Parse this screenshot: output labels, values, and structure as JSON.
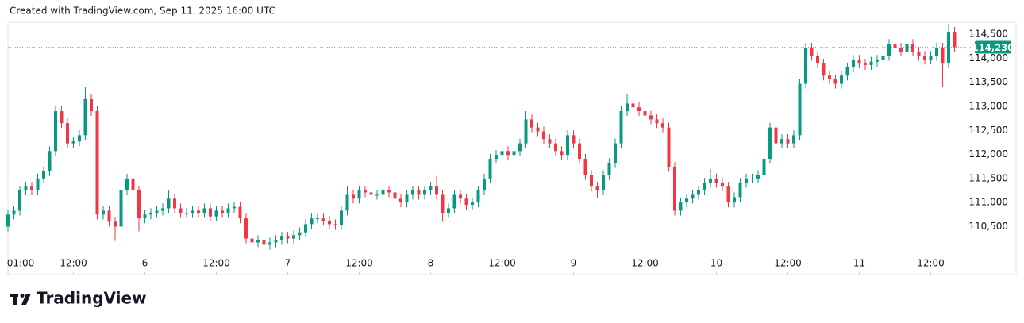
{
  "chart_data": {
    "type": "candlestick",
    "title": "Created with TradingView.com, Sep 11, 2025 16:00 UTC",
    "brand": "TradingView",
    "up_color": "#089981",
    "down_color": "#f23645",
    "last_price": {
      "value": 114230,
      "label": "114,230"
    },
    "xlim": [
      1,
      163
    ],
    "xticks": [
      {
        "value": 1,
        "label": "01:00"
      },
      {
        "value": 12,
        "label": "12:00"
      },
      {
        "value": 24,
        "label": "6"
      },
      {
        "value": 36,
        "label": "12:00"
      },
      {
        "value": 48,
        "label": "7"
      },
      {
        "value": 60,
        "label": "12:00"
      },
      {
        "value": 72,
        "label": "8"
      },
      {
        "value": 84,
        "label": "12:00"
      },
      {
        "value": 96,
        "label": "9"
      },
      {
        "value": 108,
        "label": "12:00"
      },
      {
        "value": 120,
        "label": "10"
      },
      {
        "value": 132,
        "label": "12:00"
      },
      {
        "value": 144,
        "label": "11"
      },
      {
        "value": 156,
        "label": "12:00"
      }
    ],
    "ylim": [
      109500,
      114750
    ],
    "yticks": [
      {
        "value": 110500,
        "label": "110,500"
      },
      {
        "value": 111000,
        "label": "111,000"
      },
      {
        "value": 111500,
        "label": "111,500"
      },
      {
        "value": 112000,
        "label": "112,000"
      },
      {
        "value": 112500,
        "label": "112,500"
      },
      {
        "value": 113000,
        "label": "113,000"
      },
      {
        "value": 113500,
        "label": "113,500"
      },
      {
        "value": 114000,
        "label": "114,000"
      },
      {
        "value": 114500,
        "label": "114,500"
      }
    ],
    "x": [
      1,
      2,
      3,
      4,
      5,
      6,
      7,
      8,
      9,
      10,
      11,
      12,
      13,
      14,
      15,
      16,
      17,
      18,
      19,
      20,
      21,
      22,
      23,
      24,
      25,
      26,
      27,
      28,
      29,
      30,
      31,
      32,
      33,
      34,
      35,
      36,
      37,
      38,
      39,
      40,
      41,
      42,
      43,
      44,
      45,
      46,
      47,
      48,
      49,
      50,
      51,
      52,
      53,
      54,
      55,
      56,
      57,
      58,
      59,
      60,
      61,
      62,
      63,
      64,
      65,
      66,
      67,
      68,
      69,
      70,
      71,
      72,
      73,
      74,
      75,
      76,
      77,
      78,
      79,
      80,
      81,
      82,
      83,
      84,
      85,
      86,
      87,
      88,
      89,
      90,
      91,
      92,
      93,
      94,
      95,
      96,
      97,
      98,
      99,
      100,
      101,
      102,
      103,
      104,
      105,
      106,
      107,
      108,
      109,
      110,
      111,
      112,
      113,
      114,
      115,
      116,
      117,
      118,
      119,
      120,
      121,
      122,
      123,
      124,
      125,
      126,
      127,
      128,
      129,
      130,
      131,
      132,
      133,
      134,
      135,
      136,
      137,
      138,
      139,
      140,
      141,
      142,
      143,
      144,
      145,
      146,
      147,
      148,
      149,
      150,
      151,
      152,
      153,
      154,
      155,
      156,
      157,
      158,
      159,
      160
    ],
    "open": [
      110500,
      110750,
      110830,
      111250,
      111330,
      111250,
      111500,
      111650,
      112070,
      112900,
      112650,
      112230,
      112270,
      112400,
      113150,
      112900,
      110750,
      110830,
      110600,
      110500,
      111250,
      111500,
      111250,
      110670,
      110750,
      110780,
      110830,
      110880,
      111080,
      110880,
      110780,
      110780,
      110830,
      110780,
      110880,
      110710,
      110830,
      110780,
      110880,
      110910,
      110670,
      110250,
      110170,
      110220,
      110120,
      110170,
      110220,
      110290,
      110250,
      110320,
      110380,
      110550,
      110670,
      110670,
      110620,
      110550,
      110530,
      110830,
      111160,
      111080,
      111250,
      111210,
      111160,
      111160,
      111250,
      111210,
      111080,
      111000,
      111160,
      111250,
      111160,
      111250,
      111330,
      111160,
      110780,
      110880,
      111160,
      111080,
      110950,
      111000,
      111250,
      111500,
      111910,
      111990,
      112070,
      111990,
      112070,
      112230,
      112730,
      112560,
      112480,
      112320,
      112230,
      112070,
      111990,
      112400,
      112230,
      111910,
      111570,
      111330,
      111250,
      111570,
      111820,
      112230,
      112900,
      113060,
      112980,
      112900,
      112810,
      112730,
      112650,
      112560,
      111740,
      110830,
      111000,
      111080,
      111160,
      111250,
      111410,
      111500,
      111410,
      111330,
      111000,
      111110,
      111410,
      111500,
      111500,
      111570,
      111910,
      112560,
      112230,
      112320,
      112230,
      112400,
      113470,
      114220,
      114050,
      113890,
      113640,
      113560,
      113470,
      113640,
      113810,
      113970,
      113890,
      113860,
      113930,
      113970,
      114050,
      114300,
      114220,
      114140,
      114300,
      114140,
      114050,
      113970,
      114050,
      114220,
      113890,
      114550
    ],
    "high": [
      110850,
      110930,
      111350,
      111430,
      111430,
      111600,
      111750,
      112170,
      113000,
      113000,
      112750,
      112370,
      112500,
      113400,
      113250,
      113000,
      110930,
      110930,
      110700,
      111350,
      111600,
      111700,
      111350,
      110850,
      110880,
      110930,
      110980,
      111250,
      111180,
      110980,
      110880,
      110930,
      110930,
      110980,
      110980,
      110930,
      110930,
      110980,
      111010,
      111010,
      110770,
      110350,
      110320,
      110320,
      110270,
      110320,
      110390,
      110390,
      110420,
      110480,
      110650,
      110770,
      110770,
      110770,
      110720,
      110650,
      110930,
      111350,
      111260,
      111350,
      111350,
      111310,
      111260,
      111350,
      111350,
      111310,
      111180,
      111260,
      111350,
      111350,
      111350,
      111430,
      111550,
      111260,
      110980,
      111260,
      111260,
      111180,
      111100,
      111350,
      111600,
      112010,
      112090,
      112170,
      112170,
      112170,
      112330,
      112900,
      112830,
      112660,
      112580,
      112420,
      112330,
      112170,
      112500,
      112500,
      112330,
      112010,
      111670,
      111430,
      111670,
      111920,
      112330,
      113000,
      113250,
      113160,
      113080,
      113000,
      112910,
      112830,
      112750,
      112660,
      111840,
      111100,
      111180,
      111260,
      111350,
      111510,
      111700,
      111600,
      111510,
      111430,
      111210,
      111510,
      111600,
      111600,
      111670,
      112010,
      112660,
      112660,
      112420,
      112420,
      112500,
      113570,
      114320,
      114320,
      114150,
      113990,
      113740,
      113660,
      113740,
      113910,
      114070,
      114070,
      113990,
      114030,
      114070,
      114150,
      114400,
      114400,
      114320,
      114400,
      114400,
      114240,
      114150,
      114150,
      114320,
      114320,
      114720,
      114650
    ],
    "low": [
      110400,
      110650,
      110730,
      111150,
      111150,
      111150,
      111400,
      111550,
      111970,
      112550,
      112130,
      112130,
      112170,
      112300,
      112800,
      110650,
      110650,
      110500,
      110200,
      110400,
      111150,
      111150,
      110400,
      110570,
      110650,
      110680,
      110730,
      110780,
      110780,
      110680,
      110680,
      110680,
      110680,
      110680,
      110610,
      110610,
      110680,
      110680,
      110780,
      110570,
      110150,
      110070,
      110070,
      110020,
      110020,
      110070,
      110120,
      110150,
      110150,
      110220,
      110280,
      110450,
      110570,
      110520,
      110450,
      110430,
      110430,
      110730,
      110980,
      110980,
      111110,
      111060,
      111060,
      111060,
      111110,
      110980,
      110900,
      110900,
      111060,
      111060,
      111060,
      111150,
      111060,
      110600,
      110680,
      110780,
      110980,
      110850,
      110850,
      110900,
      111150,
      111400,
      111810,
      111890,
      111890,
      111890,
      111970,
      112130,
      112460,
      112380,
      112220,
      112130,
      111970,
      111890,
      111890,
      112130,
      111810,
      111470,
      111230,
      111100,
      111150,
      111470,
      111720,
      112130,
      112800,
      112880,
      112800,
      112710,
      112630,
      112550,
      112460,
      111640,
      110730,
      110730,
      110900,
      110980,
      111060,
      111150,
      111310,
      111310,
      111230,
      110900,
      110900,
      111010,
      111310,
      111400,
      111400,
      111470,
      111810,
      112130,
      112130,
      112130,
      112130,
      112300,
      113370,
      113950,
      113790,
      113540,
      113460,
      113370,
      113370,
      113540,
      113710,
      113790,
      113760,
      113760,
      113830,
      113870,
      113950,
      114120,
      114040,
      114040,
      114040,
      113950,
      113870,
      113870,
      113950,
      113400,
      113790,
      114130
    ],
    "close": [
      110750,
      110830,
      111250,
      111330,
      111250,
      111500,
      111650,
      112070,
      112900,
      112650,
      112230,
      112270,
      112400,
      113150,
      112900,
      110750,
      110830,
      110600,
      110500,
      111250,
      111500,
      111250,
      110670,
      110750,
      110780,
      110830,
      110880,
      111080,
      110880,
      110780,
      110780,
      110830,
      110780,
      110880,
      110710,
      110830,
      110780,
      110880,
      110910,
      110670,
      110250,
      110170,
      110220,
      110120,
      110170,
      110220,
      110290,
      110250,
      110320,
      110380,
      110550,
      110670,
      110670,
      110620,
      110550,
      110530,
      110830,
      111160,
      111080,
      111250,
      111210,
      111160,
      111160,
      111250,
      111210,
      111080,
      111000,
      111160,
      111250,
      111160,
      111250,
      111330,
      111160,
      110780,
      110880,
      111160,
      111080,
      110950,
      111000,
      111250,
      111500,
      111910,
      111990,
      112070,
      111990,
      112070,
      112230,
      112730,
      112560,
      112480,
      112320,
      112230,
      112070,
      111990,
      112400,
      112230,
      111910,
      111570,
      111330,
      111250,
      111570,
      111820,
      112230,
      112900,
      113060,
      112980,
      112900,
      112810,
      112730,
      112650,
      112560,
      111740,
      110830,
      111000,
      111080,
      111160,
      111250,
      111410,
      111500,
      111410,
      111330,
      111000,
      111110,
      111410,
      111500,
      111500,
      111570,
      111910,
      112560,
      112230,
      112320,
      112230,
      112400,
      113470,
      114220,
      114050,
      113890,
      113640,
      113560,
      113470,
      113640,
      113810,
      113970,
      113890,
      113860,
      113930,
      113970,
      114050,
      114300,
      114220,
      114140,
      114300,
      114140,
      114050,
      113970,
      114050,
      114220,
      113890,
      114550,
      114230
    ]
  }
}
